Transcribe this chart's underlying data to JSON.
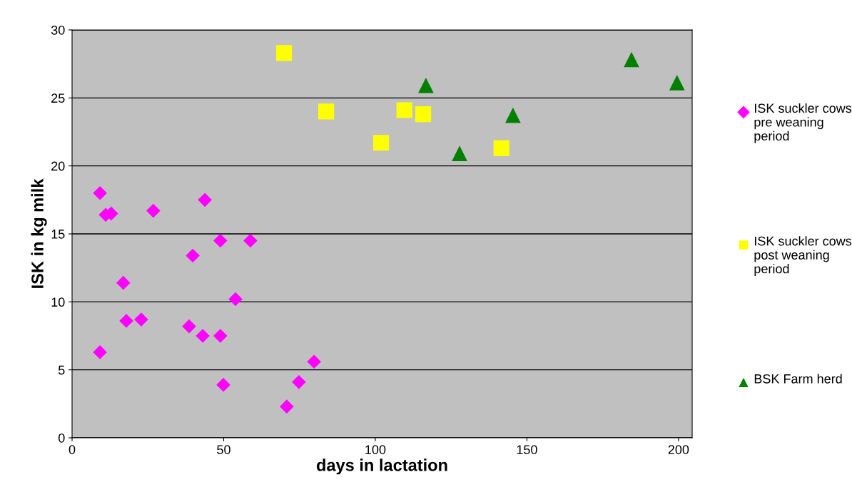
{
  "chart_data": {
    "type": "scatter",
    "xlabel": "days in lactation",
    "ylabel": "ISK in kg milk",
    "xlim": [
      0,
      204.5
    ],
    "xticks": [
      0,
      50,
      100,
      150,
      200
    ],
    "ylim": [
      0,
      30
    ],
    "yticks": [
      0,
      5,
      10,
      15,
      20,
      25,
      30
    ],
    "grid": "y",
    "legend": "right",
    "series": [
      {
        "name": "ISK suckler cows pre weaning period",
        "color": "#ff00ff",
        "marker": "diamond",
        "x": [
          9.2,
          11.1,
          12.9,
          26.8,
          43.8,
          39.8,
          48.9,
          58.8,
          16.9,
          53.9,
          17.9,
          22.8,
          38.6,
          43.1,
          48.9,
          9.2,
          49.9,
          70.8,
          74.8,
          79.8
        ],
        "values": [
          18.0,
          16.4,
          16.5,
          16.7,
          17.5,
          13.4,
          14.5,
          14.5,
          11.4,
          10.2,
          8.6,
          8.7,
          8.2,
          7.5,
          7.5,
          6.3,
          3.9,
          2.3,
          4.1,
          5.6
        ]
      },
      {
        "name": "ISK suckler cows post weaning period",
        "color": "#ffff00",
        "marker": "square",
        "x": [
          69.9,
          83.8,
          101.9,
          109.6,
          115.8,
          141.6
        ],
        "values": [
          28.3,
          24.0,
          21.7,
          24.1,
          23.8,
          21.3
        ]
      },
      {
        "name": "BSK Farm herd",
        "color": "#008000",
        "marker": "triangle",
        "x": [
          116.7,
          127.8,
          145.4,
          184.5,
          199.5
        ],
        "values": [
          25.9,
          20.9,
          23.7,
          27.8,
          26.1
        ]
      }
    ]
  }
}
